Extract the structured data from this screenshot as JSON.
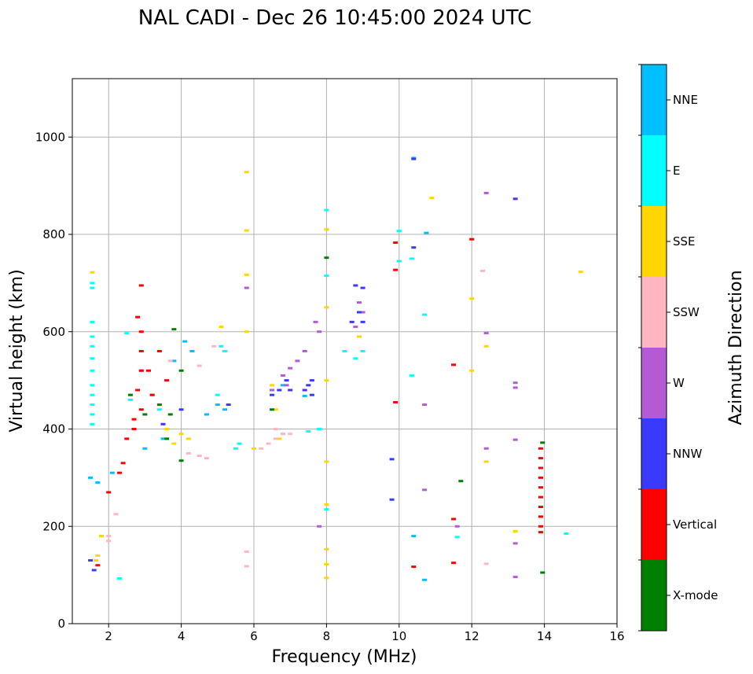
{
  "chart_data": {
    "type": "scatter",
    "title": "NAL CADI - Dec 26 10:45:00 2024 UTC",
    "xlabel": "Frequency (MHz)",
    "ylabel": "Virtual height (km)",
    "xlim": [
      1,
      16
    ],
    "ylim": [
      0,
      1120
    ],
    "xticks": [
      2,
      4,
      6,
      8,
      10,
      12,
      14,
      16
    ],
    "yticks": [
      0,
      200,
      400,
      600,
      800,
      1000
    ],
    "grid": true,
    "colorbar": {
      "title": "Azimuth Direction",
      "categories": [
        {
          "name": "X-mode",
          "color": "#008000"
        },
        {
          "name": "Vertical",
          "color": "#ff0000"
        },
        {
          "name": "NNW",
          "color": "#3a3aff"
        },
        {
          "name": "W",
          "color": "#b45ad2"
        },
        {
          "name": "SSW",
          "color": "#ffb6c1"
        },
        {
          "name": "SSE",
          "color": "#ffd700"
        },
        {
          "name": "E",
          "color": "#00ffff"
        },
        {
          "name": "NNE",
          "color": "#00bfff"
        }
      ]
    },
    "series": [
      {
        "name": "E",
        "points": [
          [
            1.55,
            410
          ],
          [
            1.55,
            430
          ],
          [
            1.55,
            450
          ],
          [
            1.55,
            470
          ],
          [
            1.55,
            490
          ],
          [
            1.55,
            520
          ],
          [
            1.55,
            545
          ],
          [
            1.55,
            570
          ],
          [
            1.55,
            590
          ],
          [
            1.55,
            620
          ],
          [
            1.55,
            690
          ],
          [
            1.55,
            700
          ],
          [
            5.1,
            570
          ],
          [
            5.2,
            560
          ],
          [
            5.0,
            470
          ],
          [
            5.5,
            360
          ],
          [
            5.6,
            370
          ],
          [
            6.8,
            390
          ],
          [
            7.5,
            395
          ],
          [
            7.8,
            400
          ],
          [
            8.0,
            850
          ],
          [
            8.0,
            810
          ],
          [
            8.0,
            715
          ],
          [
            8.5,
            560
          ],
          [
            8.8,
            545
          ],
          [
            9.0,
            560
          ],
          [
            10.0,
            807
          ],
          [
            10.0,
            745
          ],
          [
            10.35,
            750
          ],
          [
            10.35,
            510
          ],
          [
            10.7,
            635
          ],
          [
            11.6,
            178
          ],
          [
            14.6,
            185
          ],
          [
            8.0,
            235
          ],
          [
            2.3,
            93
          ],
          [
            1.8,
            180
          ],
          [
            2.6,
            460
          ],
          [
            3.4,
            440
          ],
          [
            2.5,
            597
          ]
        ]
      },
      {
        "name": "NNE",
        "points": [
          [
            10.4,
            957
          ],
          [
            10.4,
            180
          ],
          [
            10.7,
            90
          ],
          [
            10.75,
            803
          ],
          [
            4.3,
            560
          ],
          [
            4.1,
            580
          ],
          [
            3.8,
            540
          ],
          [
            5.0,
            450
          ],
          [
            5.2,
            440
          ],
          [
            4.7,
            430
          ],
          [
            3.2,
            470
          ],
          [
            2.9,
            520
          ],
          [
            6.5,
            480
          ],
          [
            6.8,
            490
          ],
          [
            7.4,
            468
          ],
          [
            1.5,
            300
          ],
          [
            1.7,
            290
          ],
          [
            2.1,
            310
          ],
          [
            3.0,
            360
          ],
          [
            3.5,
            380
          ]
        ]
      },
      {
        "name": "SSE",
        "points": [
          [
            5.8,
            928
          ],
          [
            5.8,
            808
          ],
          [
            5.8,
            717
          ],
          [
            5.8,
            600
          ],
          [
            5.1,
            610
          ],
          [
            6.5,
            490
          ],
          [
            6.6,
            440
          ],
          [
            10.9,
            875
          ],
          [
            12.0,
            668
          ],
          [
            12.0,
            520
          ],
          [
            12.4,
            570
          ],
          [
            12.4,
            333
          ],
          [
            13.2,
            190
          ],
          [
            15.0,
            723
          ],
          [
            8.0,
            810
          ],
          [
            8.0,
            650
          ],
          [
            8.0,
            500
          ],
          [
            8.0,
            333
          ],
          [
            8.0,
            245
          ],
          [
            8.0,
            153
          ],
          [
            8.0,
            122
          ],
          [
            8.0,
            94
          ],
          [
            1.55,
            722
          ],
          [
            1.7,
            140
          ],
          [
            1.65,
            130
          ],
          [
            1.8,
            180
          ],
          [
            4.0,
            390
          ],
          [
            4.2,
            380
          ],
          [
            3.6,
            400
          ],
          [
            3.8,
            370
          ],
          [
            6.0,
            360
          ],
          [
            6.7,
            380
          ],
          [
            8.9,
            590
          ]
        ]
      },
      {
        "name": "SSW",
        "points": [
          [
            5.8,
            148
          ],
          [
            5.8,
            118
          ],
          [
            12.3,
            725
          ],
          [
            12.4,
            123
          ],
          [
            4.5,
            345
          ],
          [
            4.7,
            340
          ],
          [
            4.2,
            350
          ],
          [
            6.4,
            370
          ],
          [
            6.6,
            380
          ],
          [
            6.8,
            390
          ],
          [
            6.2,
            360
          ],
          [
            7.0,
            390
          ],
          [
            6.6,
            400
          ],
          [
            2.0,
            180
          ],
          [
            2.0,
            170
          ],
          [
            2.2,
            225
          ],
          [
            4.9,
            570
          ],
          [
            4.5,
            530
          ],
          [
            3.7,
            540
          ],
          [
            12.0,
            790
          ]
        ]
      },
      {
        "name": "W",
        "points": [
          [
            12.4,
            885
          ],
          [
            12.4,
            597
          ],
          [
            12.4,
            360
          ],
          [
            13.2,
            495
          ],
          [
            13.2,
            485
          ],
          [
            13.2,
            378
          ],
          [
            13.2,
            165
          ],
          [
            13.2,
            96
          ],
          [
            10.7,
            275
          ],
          [
            10.7,
            450
          ],
          [
            11.6,
            200
          ],
          [
            8.9,
            660
          ],
          [
            9.0,
            640
          ],
          [
            8.8,
            610
          ],
          [
            7.7,
            620
          ],
          [
            7.8,
            600
          ],
          [
            7.4,
            560
          ],
          [
            7.2,
            540
          ],
          [
            7.0,
            525
          ],
          [
            6.8,
            510
          ],
          [
            6.9,
            490
          ],
          [
            6.5,
            480
          ],
          [
            5.8,
            690
          ],
          [
            7.8,
            200
          ]
        ]
      },
      {
        "name": "NNW",
        "points": [
          [
            10.4,
            955
          ],
          [
            10.4,
            773
          ],
          [
            9.8,
            338
          ],
          [
            9.8,
            255
          ],
          [
            13.2,
            873
          ],
          [
            8.8,
            695
          ],
          [
            9.0,
            690
          ],
          [
            8.7,
            620
          ],
          [
            9.0,
            620
          ],
          [
            8.9,
            640
          ],
          [
            6.7,
            480
          ],
          [
            6.5,
            470
          ],
          [
            6.9,
            500
          ],
          [
            7.0,
            480
          ],
          [
            7.6,
            500
          ],
          [
            7.6,
            470
          ],
          [
            7.5,
            490
          ],
          [
            7.4,
            480
          ],
          [
            5.3,
            450
          ],
          [
            4.0,
            440
          ],
          [
            3.5,
            410
          ],
          [
            1.5,
            130
          ],
          [
            1.6,
            110
          ]
        ]
      },
      {
        "name": "Vertical",
        "points": [
          [
            9.9,
            783
          ],
          [
            9.9,
            727
          ],
          [
            9.9,
            455
          ],
          [
            10.4,
            117
          ],
          [
            11.5,
            532
          ],
          [
            11.5,
            215
          ],
          [
            11.5,
            125
          ],
          [
            12.0,
            790
          ],
          [
            13.9,
            360
          ],
          [
            13.9,
            340
          ],
          [
            13.9,
            320
          ],
          [
            13.9,
            300
          ],
          [
            13.9,
            280
          ],
          [
            13.9,
            260
          ],
          [
            13.9,
            240
          ],
          [
            13.9,
            220
          ],
          [
            13.9,
            200
          ],
          [
            13.9,
            188
          ],
          [
            2.9,
            695
          ],
          [
            2.8,
            630
          ],
          [
            2.9,
            600
          ],
          [
            2.9,
            560
          ],
          [
            2.9,
            520
          ],
          [
            2.8,
            480
          ],
          [
            2.9,
            440
          ],
          [
            2.7,
            420
          ],
          [
            2.5,
            380
          ],
          [
            2.4,
            330
          ],
          [
            2.3,
            310
          ],
          [
            2.7,
            400
          ],
          [
            3.1,
            520
          ],
          [
            3.4,
            560
          ],
          [
            3.6,
            500
          ],
          [
            3.2,
            470
          ],
          [
            2.0,
            270
          ],
          [
            1.7,
            120
          ]
        ]
      },
      {
        "name": "X-mode",
        "points": [
          [
            13.95,
            372
          ],
          [
            13.95,
            105
          ],
          [
            11.7,
            293
          ],
          [
            8.0,
            752
          ],
          [
            3.8,
            605
          ],
          [
            4.0,
            520
          ],
          [
            3.7,
            430
          ],
          [
            3.4,
            450
          ],
          [
            6.5,
            440
          ],
          [
            4.0,
            335
          ],
          [
            2.6,
            470
          ],
          [
            3.0,
            430
          ],
          [
            3.6,
            380
          ]
        ]
      }
    ]
  }
}
